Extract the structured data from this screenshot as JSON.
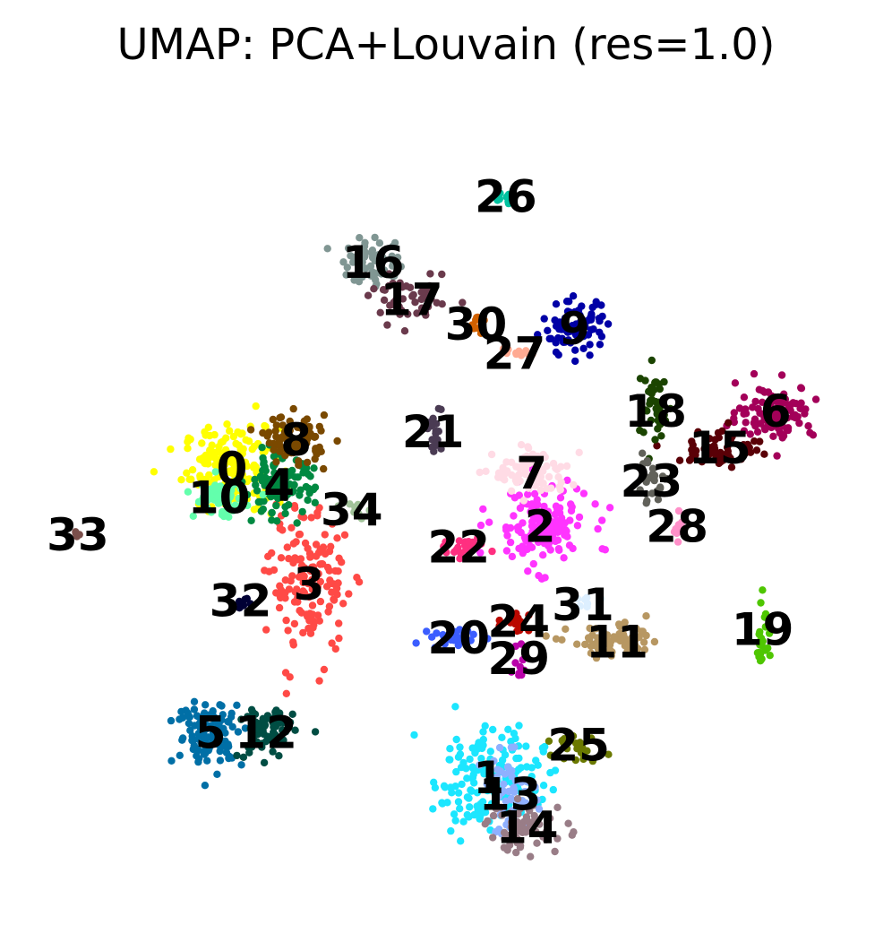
{
  "chart_data": {
    "type": "scatter",
    "title": "UMAP: PCA+Louvain (res=1.0)",
    "xlabel": "",
    "ylabel": "",
    "axes_visible": false,
    "grid": false,
    "legend": "on data",
    "xlim": [
      0,
      100
    ],
    "ylim": [
      0,
      100
    ],
    "clusters": [
      {
        "name": "0",
        "color": "#ffff00",
        "center": [
          25.0,
          54.0
        ],
        "spread": [
          3.5,
          3.2
        ],
        "n": 170
      },
      {
        "name": "1",
        "color": "#1ce6ff",
        "center": [
          55.0,
          16.5
        ],
        "spread": [
          4.0,
          4.0
        ],
        "n": 170
      },
      {
        "name": "2",
        "color": "#ff34ff",
        "center": [
          61.0,
          47.0
        ],
        "spread": [
          3.5,
          3.0
        ],
        "n": 150
      },
      {
        "name": "3",
        "color": "#ff4a46",
        "center": [
          34.0,
          40.0
        ],
        "spread": [
          2.8,
          5.5
        ],
        "n": 150
      },
      {
        "name": "4",
        "color": "#008941",
        "center": [
          30.5,
          52.0
        ],
        "spread": [
          2.5,
          2.2
        ],
        "n": 110
      },
      {
        "name": "5",
        "color": "#006fa6",
        "center": [
          22.5,
          22.0
        ],
        "spread": [
          2.4,
          2.4
        ],
        "n": 120
      },
      {
        "name": "6",
        "color": "#a30059",
        "center": [
          88.5,
          61.0
        ],
        "spread": [
          2.8,
          2.0
        ],
        "n": 110
      },
      {
        "name": "7",
        "color": "#ffdbe5",
        "center": [
          60.0,
          53.5
        ],
        "spread": [
          2.8,
          1.8
        ],
        "n": 90
      },
      {
        "name": "8",
        "color": "#7a4900",
        "center": [
          32.5,
          57.5
        ],
        "spread": [
          2.2,
          1.8
        ],
        "n": 80
      },
      {
        "name": "9",
        "color": "#0000a6",
        "center": [
          65.0,
          71.0
        ],
        "spread": [
          2.4,
          2.0
        ],
        "n": 80
      },
      {
        "name": "10",
        "color": "#63ffac",
        "center": [
          23.5,
          50.5
        ],
        "spread": [
          1.8,
          1.4
        ],
        "n": 60
      },
      {
        "name": "11",
        "color": "#b79762",
        "center": [
          70.0,
          33.0
        ],
        "spread": [
          3.5,
          1.2
        ],
        "n": 70
      },
      {
        "name": "12",
        "color": "#004d43",
        "center": [
          29.0,
          22.0
        ],
        "spread": [
          2.0,
          2.0
        ],
        "n": 70
      },
      {
        "name": "13",
        "color": "#8fb0ff",
        "center": [
          57.5,
          14.5
        ],
        "spread": [
          2.0,
          3.0
        ],
        "n": 60
      },
      {
        "name": "14",
        "color": "#997d87",
        "center": [
          59.5,
          10.5
        ],
        "spread": [
          3.0,
          2.0
        ],
        "n": 60
      },
      {
        "name": "15",
        "color": "#5a0007",
        "center": [
          82.0,
          56.5
        ],
        "spread": [
          3.0,
          1.5
        ],
        "n": 60
      },
      {
        "name": "16",
        "color": "#809693",
        "center": [
          41.5,
          79.0
        ],
        "spread": [
          2.2,
          1.8
        ],
        "n": 60
      },
      {
        "name": "17",
        "color": "#6a3a4c",
        "center": [
          46.0,
          74.5
        ],
        "spread": [
          3.0,
          1.6
        ],
        "n": 50
      },
      {
        "name": "18",
        "color": "#1b4400",
        "center": [
          74.5,
          61.0
        ],
        "spread": [
          1.2,
          3.0
        ],
        "n": 40
      },
      {
        "name": "19",
        "color": "#4fc601",
        "center": [
          87.0,
          34.5
        ],
        "spread": [
          0.6,
          2.5
        ],
        "n": 25
      },
      {
        "name": "20",
        "color": "#3b5dff",
        "center": [
          51.5,
          33.5
        ],
        "spread": [
          2.0,
          0.8
        ],
        "n": 30
      },
      {
        "name": "21",
        "color": "#4a3b53",
        "center": [
          48.5,
          58.5
        ],
        "spread": [
          0.6,
          2.0
        ],
        "n": 20
      },
      {
        "name": "22",
        "color": "#ff2f80",
        "center": [
          51.5,
          44.5
        ],
        "spread": [
          2.2,
          0.6
        ],
        "n": 25
      },
      {
        "name": "23",
        "color": "#61615a",
        "center": [
          74.0,
          52.5
        ],
        "spread": [
          1.2,
          1.8
        ],
        "n": 30
      },
      {
        "name": "24",
        "color": "#ba0900",
        "center": [
          58.5,
          35.5
        ],
        "spread": [
          1.2,
          1.0
        ],
        "n": 15
      },
      {
        "name": "25",
        "color": "#6b7900",
        "center": [
          65.5,
          20.5
        ],
        "spread": [
          1.6,
          1.2
        ],
        "n": 20
      },
      {
        "name": "26",
        "color": "#00c2a0",
        "center": [
          57.0,
          87.0
        ],
        "spread": [
          1.0,
          0.5
        ],
        "n": 12
      },
      {
        "name": "27",
        "color": "#ffaa92",
        "center": [
          58.0,
          68.0
        ],
        "spread": [
          1.0,
          0.8
        ],
        "n": 12
      },
      {
        "name": "28",
        "color": "#ff90c9",
        "center": [
          77.0,
          47.0
        ],
        "spread": [
          0.4,
          1.5
        ],
        "n": 10
      },
      {
        "name": "29",
        "color": "#b903aa",
        "center": [
          58.5,
          31.0
        ],
        "spread": [
          0.6,
          1.5
        ],
        "n": 12
      },
      {
        "name": "30",
        "color": "#d16100",
        "center": [
          53.5,
          71.5
        ],
        "spread": [
          0.8,
          1.2
        ],
        "n": 14
      },
      {
        "name": "31",
        "color": "#ddefff",
        "center": [
          66.0,
          37.5
        ],
        "spread": [
          0.8,
          0.8
        ],
        "n": 8
      },
      {
        "name": "32",
        "color": "#000035",
        "center": [
          26.0,
          38.0
        ],
        "spread": [
          0.8,
          0.6
        ],
        "n": 8
      },
      {
        "name": "33",
        "color": "#7b4f4b",
        "center": [
          7.0,
          46.0
        ],
        "spread": [
          0.3,
          0.3
        ],
        "n": 4
      },
      {
        "name": "34",
        "color": "#a1c299",
        "center": [
          39.0,
          49.0
        ],
        "spread": [
          1.0,
          1.0
        ],
        "n": 10
      }
    ]
  }
}
